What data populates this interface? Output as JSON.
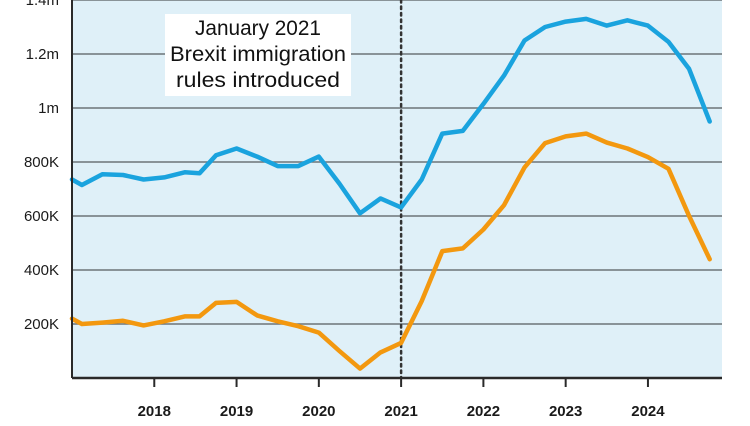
{
  "colors": {
    "plot_background": "#dff0f8",
    "grid": "#6d7478",
    "axis": "#2a2a2a",
    "annotation_box": "#ffffff",
    "divider": "#333333"
  },
  "chart_data": {
    "type": "line",
    "title": "",
    "xlabel": "",
    "ylabel": "",
    "xlim": [
      2017.0,
      2024.9
    ],
    "ylim": [
      0,
      1400000
    ],
    "x_ticks": [
      2018,
      2019,
      2020,
      2021,
      2022,
      2023,
      2024
    ],
    "x_tick_labels": [
      "2018",
      "2019",
      "2020",
      "2021",
      "2022",
      "2023",
      "2024"
    ],
    "y_ticks": [
      200000,
      400000,
      600000,
      800000,
      1000000,
      1200000,
      1400000
    ],
    "y_tick_labels": [
      "200K",
      "400K",
      "600K",
      "800K",
      "1m",
      "1.2m",
      "1.4m"
    ],
    "grid": true,
    "event_line": {
      "x": 2021.0,
      "style": "dotted"
    },
    "annotation": {
      "lines": [
        "January 2021",
        "Brexit immigration",
        "rules introduced"
      ]
    },
    "series": [
      {
        "name": "Blue series",
        "color": "#1aa3de",
        "x": [
          2017.0,
          2017.12,
          2017.37,
          2017.62,
          2017.87,
          2018.12,
          2018.37,
          2018.55,
          2018.75,
          2019.0,
          2019.25,
          2019.5,
          2019.75,
          2020.0,
          2020.25,
          2020.5,
          2020.75,
          2021.0,
          2021.25,
          2021.5,
          2021.75,
          2022.0,
          2022.25,
          2022.5,
          2022.75,
          2023.0,
          2023.25,
          2023.5,
          2023.75,
          2024.0,
          2024.25,
          2024.5,
          2024.75
        ],
        "values": [
          735000,
          715000,
          755000,
          752000,
          735000,
          743000,
          762000,
          758000,
          825000,
          850000,
          820000,
          785000,
          785000,
          820000,
          720000,
          610000,
          665000,
          632000,
          735000,
          905000,
          915000,
          1015000,
          1120000,
          1250000,
          1300000,
          1320000,
          1330000,
          1305000,
          1325000,
          1305000,
          1245000,
          1145000,
          950000
        ]
      },
      {
        "name": "Orange series",
        "color": "#f3980f",
        "x": [
          2017.0,
          2017.12,
          2017.37,
          2017.62,
          2017.87,
          2018.12,
          2018.37,
          2018.55,
          2018.75,
          2019.0,
          2019.25,
          2019.5,
          2019.75,
          2020.0,
          2020.25,
          2020.5,
          2020.75,
          2021.0,
          2021.25,
          2021.5,
          2021.75,
          2022.0,
          2022.25,
          2022.5,
          2022.75,
          2023.0,
          2023.25,
          2023.5,
          2023.75,
          2024.0,
          2024.25,
          2024.5,
          2024.75
        ],
        "values": [
          220000,
          200000,
          205000,
          212000,
          195000,
          210000,
          228000,
          228000,
          278000,
          282000,
          232000,
          210000,
          192000,
          168000,
          100000,
          35000,
          95000,
          130000,
          285000,
          470000,
          480000,
          550000,
          640000,
          780000,
          870000,
          895000,
          905000,
          872000,
          850000,
          818000,
          775000,
          600000,
          440000
        ]
      }
    ]
  }
}
